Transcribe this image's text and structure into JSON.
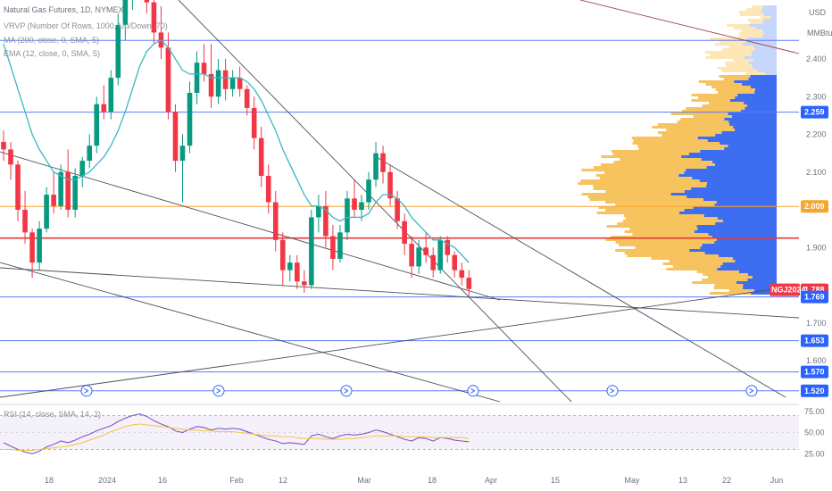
{
  "legend": {
    "title": "Natural Gas Futures, 1D, NYMEX",
    "vrvp": "VRVP (Number Of Rows, 1000, Up/Down, 70)",
    "ma": "MA (200, close, 0, SMA, 5)",
    "ema": "EMA (12, close, 0, SMA, 5)",
    "rsi": "RSI (14, close, SMA, 14, 2)"
  },
  "axis": {
    "currency": "USD",
    "unit": "MMBtu"
  },
  "colors": {
    "up": "#089981",
    "down": "#f23645",
    "ema": "#3bb6c4",
    "level": "#5b7cf7",
    "vp_up": "#f7c35f",
    "vp_down": "#3d6ef2",
    "rsi": "#7e57c2",
    "rsi_ma": "#f2c94c"
  },
  "chart_data": {
    "type": "candlestick",
    "y_ticks": [
      "2.400",
      "2.300",
      "2.200",
      "2.100",
      "1.900",
      "1.700",
      "1.600"
    ],
    "x_ticks": [
      "18",
      "2024",
      "16",
      "Feb",
      "12",
      "Mar",
      "18",
      "Apr",
      "15",
      "May",
      "13",
      "22",
      "Jun"
    ],
    "price_tags": [
      {
        "label": "2.259",
        "value": 2.259,
        "color": "#2962ff"
      },
      {
        "label": "2.009",
        "value": 2.009,
        "color": "#f7a531"
      },
      {
        "label": "1.788",
        "value": 1.788,
        "color": "#f23645",
        "symbol": "NGJ2024"
      },
      {
        "label": "1.769",
        "value": 1.769,
        "color": "#2962ff"
      },
      {
        "label": "1.653",
        "value": 1.653,
        "color": "#2962ff"
      },
      {
        "label": "1.570",
        "value": 1.57,
        "color": "#2962ff"
      },
      {
        "label": "1.520",
        "value": 1.52,
        "color": "#2962ff"
      }
    ],
    "horizontal_levels": [
      2.449,
      2.259,
      2.009,
      1.925,
      1.769,
      1.653,
      1.57,
      1.52
    ],
    "ylim": [
      1.5,
      2.55
    ],
    "rsi_ticks": [
      "75.00",
      "50.00",
      "25.00"
    ],
    "rsi_levels": [
      70,
      30
    ],
    "rsi_ylim": [
      20,
      80
    ],
    "candles": [
      [
        2.18,
        2.21,
        2.13,
        2.16
      ],
      [
        2.16,
        2.18,
        2.08,
        2.12
      ],
      [
        2.12,
        2.13,
        1.97,
        2.0
      ],
      [
        2.0,
        2.05,
        1.91,
        1.94
      ],
      [
        1.94,
        1.95,
        1.82,
        1.86
      ],
      [
        1.86,
        1.97,
        1.84,
        1.95
      ],
      [
        1.95,
        2.06,
        1.94,
        2.04
      ],
      [
        2.04,
        2.1,
        1.99,
        2.01
      ],
      [
        2.01,
        2.12,
        2.0,
        2.1
      ],
      [
        2.1,
        2.16,
        1.98,
        2.0
      ],
      [
        2.0,
        2.11,
        1.98,
        2.09
      ],
      [
        2.09,
        2.14,
        2.06,
        2.13
      ],
      [
        2.13,
        2.2,
        2.11,
        2.17
      ],
      [
        2.17,
        2.3,
        2.15,
        2.28
      ],
      [
        2.28,
        2.33,
        2.24,
        2.26
      ],
      [
        2.26,
        2.37,
        2.24,
        2.35
      ],
      [
        2.35,
        2.52,
        2.33,
        2.49
      ],
      [
        2.49,
        2.6,
        2.45,
        2.57
      ],
      [
        2.57,
        2.64,
        2.53,
        2.62
      ],
      [
        2.62,
        2.69,
        2.58,
        2.63
      ],
      [
        2.63,
        2.66,
        2.52,
        2.55
      ],
      [
        2.55,
        2.59,
        2.44,
        2.47
      ],
      [
        2.47,
        2.54,
        2.4,
        2.43
      ],
      [
        2.43,
        2.47,
        2.24,
        2.26
      ],
      [
        2.26,
        2.28,
        2.1,
        2.13
      ],
      [
        2.13,
        2.2,
        2.02,
        2.17
      ],
      [
        2.17,
        2.34,
        2.15,
        2.31
      ],
      [
        2.31,
        2.42,
        2.28,
        2.39
      ],
      [
        2.39,
        2.44,
        2.34,
        2.36
      ],
      [
        2.36,
        2.44,
        2.27,
        2.3
      ],
      [
        2.3,
        2.4,
        2.28,
        2.37
      ],
      [
        2.37,
        2.4,
        2.29,
        2.32
      ],
      [
        2.32,
        2.37,
        2.3,
        2.35
      ],
      [
        2.35,
        2.38,
        2.3,
        2.32
      ],
      [
        2.32,
        2.33,
        2.25,
        2.27
      ],
      [
        2.27,
        2.3,
        2.16,
        2.19
      ],
      [
        2.19,
        2.22,
        2.06,
        2.09
      ],
      [
        2.09,
        2.12,
        1.99,
        2.02
      ],
      [
        2.02,
        2.05,
        1.89,
        1.92
      ],
      [
        1.92,
        1.94,
        1.8,
        1.84
      ],
      [
        1.84,
        1.88,
        1.81,
        1.86
      ],
      [
        1.86,
        1.88,
        1.79,
        1.81
      ],
      [
        1.81,
        1.84,
        1.78,
        1.8
      ],
      [
        1.8,
        2.0,
        1.79,
        1.98
      ],
      [
        1.98,
        2.04,
        1.94,
        2.01
      ],
      [
        2.01,
        2.05,
        1.9,
        1.93
      ],
      [
        1.93,
        1.96,
        1.84,
        1.87
      ],
      [
        1.87,
        1.96,
        1.86,
        1.94
      ],
      [
        1.94,
        2.05,
        1.92,
        2.03
      ],
      [
        2.03,
        2.08,
        1.98,
        2.0
      ],
      [
        2.0,
        2.04,
        1.97,
        2.02
      ],
      [
        2.02,
        2.1,
        2.0,
        2.08
      ],
      [
        2.08,
        2.18,
        2.06,
        2.15
      ],
      [
        2.15,
        2.17,
        2.07,
        2.1
      ],
      [
        2.1,
        2.12,
        2.01,
        2.03
      ],
      [
        2.03,
        2.05,
        1.95,
        1.97
      ],
      [
        1.97,
        1.99,
        1.88,
        1.91
      ],
      [
        1.91,
        1.93,
        1.82,
        1.85
      ],
      [
        1.85,
        1.92,
        1.83,
        1.9
      ],
      [
        1.9,
        1.94,
        1.86,
        1.88
      ],
      [
        1.88,
        1.9,
        1.82,
        1.84
      ],
      [
        1.84,
        1.93,
        1.83,
        1.92
      ],
      [
        1.92,
        1.93,
        1.86,
        1.88
      ],
      [
        1.88,
        1.89,
        1.82,
        1.84
      ],
      [
        1.84,
        1.86,
        1.8,
        1.82
      ],
      [
        1.82,
        1.84,
        1.77,
        1.79
      ]
    ],
    "ema_values": [
      2.44,
      2.38,
      2.32,
      2.26,
      2.2,
      2.16,
      2.13,
      2.1,
      2.09,
      2.08,
      2.08,
      2.09,
      2.1,
      2.12,
      2.14,
      2.17,
      2.21,
      2.26,
      2.32,
      2.38,
      2.42,
      2.44,
      2.45,
      2.43,
      2.4,
      2.37,
      2.36,
      2.36,
      2.36,
      2.35,
      2.35,
      2.35,
      2.35,
      2.35,
      2.34,
      2.32,
      2.29,
      2.25,
      2.21,
      2.16,
      2.12,
      2.08,
      2.04,
      2.01,
      2.01,
      2.0,
      1.98,
      1.97,
      1.98,
      1.98,
      1.98,
      1.99,
      2.02,
      2.04,
      2.04,
      2.03,
      2.01,
      1.98,
      1.96,
      1.94,
      1.92,
      1.92,
      1.91,
      1.9,
      1.88,
      1.86
    ],
    "rsi_values": [
      38,
      34,
      30,
      27,
      25,
      28,
      33,
      36,
      40,
      38,
      41,
      45,
      48,
      52,
      55,
      58,
      63,
      67,
      70,
      72,
      69,
      64,
      60,
      57,
      52,
      50,
      54,
      57,
      56,
      53,
      55,
      54,
      55,
      54,
      51,
      48,
      45,
      42,
      40,
      37,
      38,
      37,
      36,
      46,
      48,
      45,
      43,
      46,
      48,
      47,
      48,
      50,
      53,
      51,
      48,
      45,
      42,
      40,
      44,
      43,
      40,
      44,
      43,
      41,
      40,
      39
    ],
    "rsi_ma_values": [
      30,
      30,
      29,
      29,
      29,
      30,
      31,
      32,
      33,
      34,
      36,
      38,
      41,
      44,
      47,
      51,
      54,
      57,
      59,
      60,
      59,
      58,
      57,
      56,
      55,
      54,
      53,
      53,
      52,
      52,
      51,
      51,
      51,
      50,
      49,
      48,
      47,
      46,
      46,
      45,
      45,
      44,
      43,
      43,
      43,
      42,
      42,
      42,
      43,
      43,
      44,
      45,
      46,
      46,
      46,
      46,
      45,
      45,
      45,
      45,
      44,
      44,
      44,
      44,
      44,
      43
    ]
  }
}
